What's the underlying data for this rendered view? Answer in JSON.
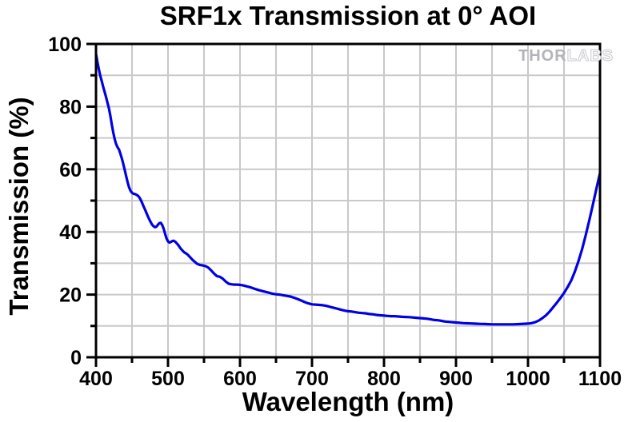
{
  "chart": {
    "title": "SRF1x Transmission at 0° AOI",
    "xlabel": "Wavelength (nm)",
    "ylabel": "Transmission (%)"
  },
  "watermark": {
    "solid": "THOR",
    "outline": "LABS"
  },
  "colors": {
    "line": "#0000e6",
    "grid": "#c9c9c9",
    "axis": "#000000",
    "watermark_solid": "#b3b3b9",
    "watermark_outline": "#c9c9cf",
    "background": "#ffffff"
  },
  "chart_data": {
    "type": "line",
    "title": "SRF1x Transmission at 0° AOI",
    "xlabel": "Wavelength (nm)",
    "ylabel": "Transmission (%)",
    "xlim": [
      400,
      1100
    ],
    "ylim": [
      0,
      100
    ],
    "x_major_ticks": [
      400,
      500,
      600,
      700,
      800,
      900,
      1000,
      1100
    ],
    "y_major_ticks": [
      0,
      20,
      40,
      60,
      80,
      100
    ],
    "x_minor_ticks": [
      450,
      550,
      650,
      750,
      850,
      950,
      1050
    ],
    "y_minor_ticks": [
      10,
      30,
      50,
      70,
      90
    ],
    "grid": {
      "x_step": 50,
      "y_step": 10,
      "on": true,
      "color": "#c9c9c9"
    },
    "legend": "none",
    "line_color": "#0000e6",
    "series": [
      {
        "name": "SRF1x transmission at 0 deg AOI",
        "points": [
          [
            400,
            96.8
          ],
          [
            402,
            94.2
          ],
          [
            404,
            91.9
          ],
          [
            406,
            89.8
          ],
          [
            408,
            88.1
          ],
          [
            410,
            86.3
          ],
          [
            412,
            84.7
          ],
          [
            414,
            83.0
          ],
          [
            416,
            81.2
          ],
          [
            418,
            79.4
          ],
          [
            420,
            77.0
          ],
          [
            422,
            74.2
          ],
          [
            424,
            71.7
          ],
          [
            426,
            69.6
          ],
          [
            428,
            68.0
          ],
          [
            430,
            67.0
          ],
          [
            432,
            66.3
          ],
          [
            434,
            64.9
          ],
          [
            436,
            63.4
          ],
          [
            438,
            61.6
          ],
          [
            440,
            59.7
          ],
          [
            442,
            57.7
          ],
          [
            444,
            55.8
          ],
          [
            446,
            54.2
          ],
          [
            448,
            53.1
          ],
          [
            450,
            52.5
          ],
          [
            452,
            52.2
          ],
          [
            454,
            52.1
          ],
          [
            456,
            51.9
          ],
          [
            458,
            51.6
          ],
          [
            460,
            51.1
          ],
          [
            462,
            50.3
          ],
          [
            464,
            49.3
          ],
          [
            466,
            48.2
          ],
          [
            468,
            47.2
          ],
          [
            470,
            46.1
          ],
          [
            472,
            45.0
          ],
          [
            474,
            44.0
          ],
          [
            476,
            43.1
          ],
          [
            478,
            42.3
          ],
          [
            480,
            41.8
          ],
          [
            482,
            41.5
          ],
          [
            484,
            41.7
          ],
          [
            486,
            42.3
          ],
          [
            488,
            42.8
          ],
          [
            490,
            42.9
          ],
          [
            492,
            42.2
          ],
          [
            494,
            41.0
          ],
          [
            496,
            39.4
          ],
          [
            498,
            37.9
          ],
          [
            500,
            37.0
          ],
          [
            502,
            36.6
          ],
          [
            504,
            36.8
          ],
          [
            506,
            37.1
          ],
          [
            508,
            37.2
          ],
          [
            510,
            36.9
          ],
          [
            512,
            36.4
          ],
          [
            514,
            35.9
          ],
          [
            516,
            35.2
          ],
          [
            518,
            34.6
          ],
          [
            520,
            34.1
          ],
          [
            522,
            33.6
          ],
          [
            524,
            33.3
          ],
          [
            526,
            33.0
          ],
          [
            528,
            32.6
          ],
          [
            530,
            32.1
          ],
          [
            532,
            31.6
          ],
          [
            534,
            31.1
          ],
          [
            536,
            30.7
          ],
          [
            538,
            30.3
          ],
          [
            540,
            29.9
          ],
          [
            544,
            29.5
          ],
          [
            548,
            29.3
          ],
          [
            552,
            29.1
          ],
          [
            556,
            28.6
          ],
          [
            560,
            27.7
          ],
          [
            564,
            26.7
          ],
          [
            568,
            25.9
          ],
          [
            572,
            25.7
          ],
          [
            576,
            25.1
          ],
          [
            580,
            24.2
          ],
          [
            584,
            23.5
          ],
          [
            588,
            23.3
          ],
          [
            592,
            23.2
          ],
          [
            596,
            23.2
          ],
          [
            600,
            23.1
          ],
          [
            605,
            22.9
          ],
          [
            610,
            22.6
          ],
          [
            615,
            22.3
          ],
          [
            620,
            21.9
          ],
          [
            625,
            21.5
          ],
          [
            630,
            21.2
          ],
          [
            635,
            20.9
          ],
          [
            640,
            20.6
          ],
          [
            645,
            20.3
          ],
          [
            650,
            20.1
          ],
          [
            655,
            20.0
          ],
          [
            660,
            19.8
          ],
          [
            665,
            19.6
          ],
          [
            670,
            19.4
          ],
          [
            675,
            19.0
          ],
          [
            680,
            18.6
          ],
          [
            685,
            18.1
          ],
          [
            690,
            17.6
          ],
          [
            695,
            17.2
          ],
          [
            700,
            16.9
          ],
          [
            705,
            16.8
          ],
          [
            710,
            16.7
          ],
          [
            715,
            16.6
          ],
          [
            720,
            16.4
          ],
          [
            725,
            16.1
          ],
          [
            730,
            15.8
          ],
          [
            735,
            15.5
          ],
          [
            740,
            15.2
          ],
          [
            745,
            14.9
          ],
          [
            750,
            14.7
          ],
          [
            755,
            14.6
          ],
          [
            760,
            14.4
          ],
          [
            765,
            14.2
          ],
          [
            770,
            14.1
          ],
          [
            775,
            14.0
          ],
          [
            780,
            13.8
          ],
          [
            785,
            13.7
          ],
          [
            790,
            13.5
          ],
          [
            795,
            13.4
          ],
          [
            800,
            13.3
          ],
          [
            805,
            13.2
          ],
          [
            810,
            13.1
          ],
          [
            815,
            13.1
          ],
          [
            820,
            13.0
          ],
          [
            825,
            12.9
          ],
          [
            830,
            12.85
          ],
          [
            835,
            12.8
          ],
          [
            840,
            12.7
          ],
          [
            845,
            12.6
          ],
          [
            850,
            12.5
          ],
          [
            855,
            12.4
          ],
          [
            860,
            12.3
          ],
          [
            865,
            12.1
          ],
          [
            870,
            11.9
          ],
          [
            875,
            11.8
          ],
          [
            880,
            11.6
          ],
          [
            885,
            11.4
          ],
          [
            890,
            11.3
          ],
          [
            895,
            11.2
          ],
          [
            900,
            11.1
          ],
          [
            905,
            11.0
          ],
          [
            910,
            10.9
          ],
          [
            915,
            10.85
          ],
          [
            920,
            10.8
          ],
          [
            925,
            10.75
          ],
          [
            930,
            10.7
          ],
          [
            935,
            10.65
          ],
          [
            940,
            10.6
          ],
          [
            945,
            10.55
          ],
          [
            950,
            10.5
          ],
          [
            960,
            10.5
          ],
          [
            970,
            10.5
          ],
          [
            980,
            10.5
          ],
          [
            990,
            10.6
          ],
          [
            1000,
            10.75
          ],
          [
            1005,
            10.9
          ],
          [
            1010,
            11.2
          ],
          [
            1015,
            11.7
          ],
          [
            1020,
            12.5
          ],
          [
            1025,
            13.4
          ],
          [
            1030,
            14.6
          ],
          [
            1035,
            16.0
          ],
          [
            1040,
            17.4
          ],
          [
            1045,
            18.9
          ],
          [
            1050,
            20.5
          ],
          [
            1055,
            22.4
          ],
          [
            1060,
            24.5
          ],
          [
            1065,
            27.3
          ],
          [
            1070,
            30.6
          ],
          [
            1075,
            34.4
          ],
          [
            1080,
            38.8
          ],
          [
            1085,
            43.6
          ],
          [
            1090,
            48.6
          ],
          [
            1095,
            53.8
          ],
          [
            1100,
            58.8
          ]
        ]
      }
    ]
  }
}
